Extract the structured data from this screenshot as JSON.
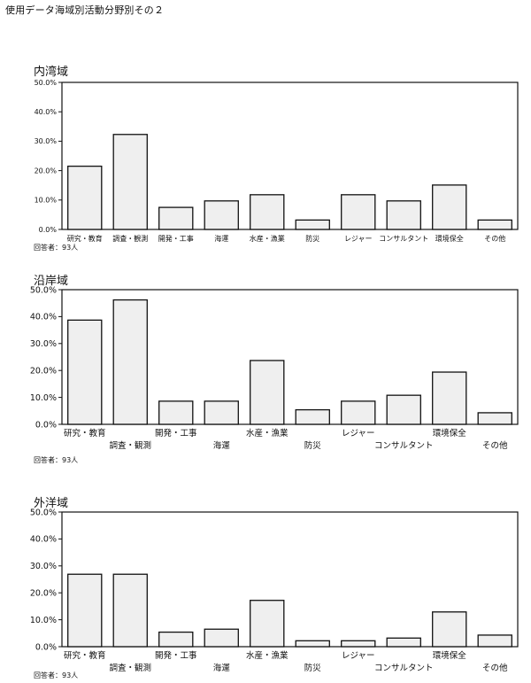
{
  "page": {
    "title": "使用データ海域別活動分野別その２"
  },
  "colors": {
    "bar_fill": "#efefef",
    "bar_stroke": "#111111",
    "frame": "#111111",
    "text": "#111111"
  },
  "chart_data": [
    {
      "type": "bar",
      "title": "内湾域",
      "note": "回答者：93人",
      "ylim": [
        0,
        50
      ],
      "yticks": [
        "0.0%",
        "10.0%",
        "20.0%",
        "30.0%",
        "40.0%",
        "50.0%"
      ],
      "categories": [
        "研究・教育",
        "調査・観測",
        "開発・工事",
        "海運",
        "水産・漁業",
        "防災",
        "レジャー",
        "コンサルタント",
        "環境保全",
        "その他"
      ],
      "values": [
        21.5,
        32.3,
        7.5,
        9.7,
        11.8,
        3.2,
        11.8,
        9.7,
        15.1,
        3.2
      ]
    },
    {
      "type": "bar",
      "title": "沿岸域",
      "note": "回答者：93人",
      "ylim": [
        0,
        50
      ],
      "yticks": [
        "0.0%",
        "10.0%",
        "20.0%",
        "30.0%",
        "40.0%",
        "50.0%"
      ],
      "categories": [
        "研究・教育",
        "調査・観測",
        "開発・工事",
        "海運",
        "水産・漁業",
        "防災",
        "レジャー",
        "コンサルタント",
        "環境保全",
        "その他"
      ],
      "values": [
        38.7,
        46.2,
        8.6,
        8.6,
        23.7,
        5.4,
        8.6,
        10.8,
        19.4,
        4.3
      ]
    },
    {
      "type": "bar",
      "title": "外洋域",
      "note": "回答者：93人",
      "ylim": [
        0,
        50
      ],
      "yticks": [
        "0.0%",
        "10.0%",
        "20.0%",
        "30.0%",
        "40.0%",
        "50.0%"
      ],
      "categories": [
        "研究・教育",
        "調査・観測",
        "開発・工事",
        "海運",
        "水産・漁業",
        "防災",
        "レジャー",
        "コンサルタント",
        "環境保全",
        "その他"
      ],
      "values": [
        26.9,
        26.9,
        5.4,
        6.5,
        17.2,
        2.2,
        2.2,
        3.2,
        12.9,
        4.3
      ]
    }
  ]
}
